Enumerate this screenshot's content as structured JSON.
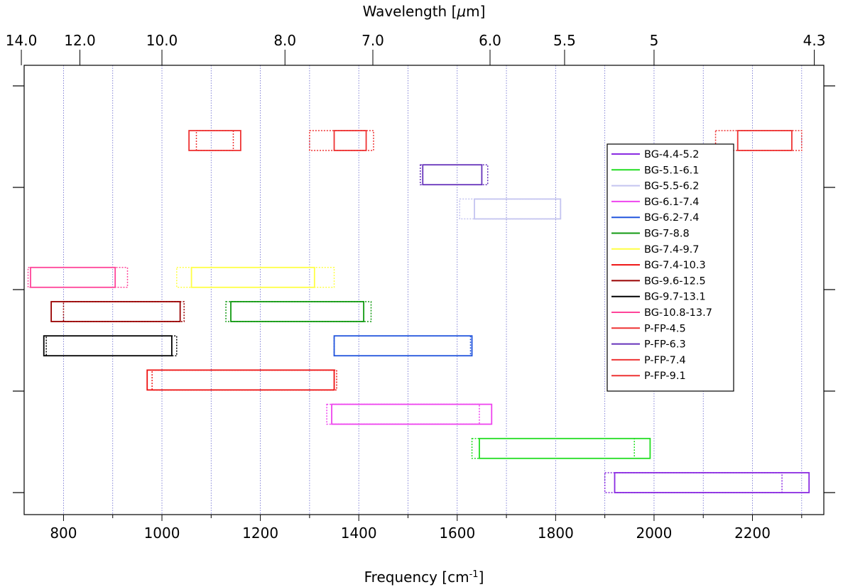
{
  "chart_data": {
    "type": "range-bar",
    "x_axis": {
      "label_main": "Frequency [cm",
      "label_sup": "-1",
      "label_end": "]",
      "range": [
        720,
        2345
      ],
      "ticks": [
        800,
        1000,
        1200,
        1400,
        1600,
        1800,
        2000,
        2200
      ],
      "tick_labels": [
        "800",
        "1000",
        "1200",
        "1400",
        "1600",
        "1800",
        "2000",
        "2200"
      ],
      "minor_gridlines": [
        800,
        900,
        1000,
        1100,
        1200,
        1300,
        1400,
        1500,
        1600,
        1700,
        1800,
        1900,
        2000,
        2100,
        2200,
        2300
      ]
    },
    "top_axis": {
      "label_main": "Wavelength [",
      "label_mu": "μ",
      "label_end": "m]",
      "ticks": [
        {
          "label": "14.0",
          "freq": 714.3
        },
        {
          "label": "12.0",
          "freq": 833.3
        },
        {
          "label": "10.0",
          "freq": 1000
        },
        {
          "label": "8.0",
          "freq": 1250
        },
        {
          "label": "7.0",
          "freq": 1428.6
        },
        {
          "label": "6.0",
          "freq": 1666.7
        },
        {
          "label": "5.5",
          "freq": 1818.2
        },
        {
          "label": "5",
          "freq": 2000
        },
        {
          "label": "4.3",
          "freq": 2325.6
        }
      ]
    },
    "grid": true,
    "legend_position": "right",
    "series": [
      {
        "name": "BG-4.4-5.2",
        "color": "#8a2be2",
        "row": 0,
        "solid": [
          1920,
          2315
        ],
        "dotted": [
          1900,
          2260
        ]
      },
      {
        "name": "BG-5.1-6.1",
        "color": "#22dd22",
        "row": 1,
        "solid": [
          1645,
          1992
        ],
        "dotted": [
          1630,
          1960
        ]
      },
      {
        "name": "BG-5.5-6.2",
        "color": "#c4c4f0",
        "row": 8,
        "solid": [
          1635,
          1810
        ],
        "dotted": [
          1605,
          1810
        ]
      },
      {
        "name": "BG-6.1-7.4",
        "color": "#ee44ee",
        "row": 2,
        "solid": [
          1345,
          1670
        ],
        "dotted": [
          1335,
          1645
        ]
      },
      {
        "name": "BG-6.2-7.4",
        "color": "#2255dd",
        "row": 4,
        "solid": [
          1350,
          1630
        ],
        "dotted": [
          1350,
          1627
        ]
      },
      {
        "name": "BG-7-8.8",
        "color": "#119911",
        "row": 5,
        "solid": [
          1140,
          1410
        ],
        "dotted": [
          1130,
          1425
        ]
      },
      {
        "name": "BG-7.4-9.7",
        "color": "#ffff44",
        "row": 6,
        "solid": [
          1060,
          1310
        ],
        "dotted": [
          1030,
          1350
        ]
      },
      {
        "name": "BG-7.4-10.3",
        "color": "#ee1111",
        "row": 3,
        "solid": [
          970,
          1350
        ],
        "dotted": [
          980,
          1355
        ]
      },
      {
        "name": "BG-9.6-12.5",
        "color": "#990000",
        "row": 5,
        "solid": [
          775,
          1037
        ],
        "dotted": [
          800,
          1045
        ]
      },
      {
        "name": "BG-9.7-13.1",
        "color": "#000000",
        "row": 4,
        "solid": [
          760,
          1020
        ],
        "dotted": [
          765,
          1030
        ]
      },
      {
        "name": "BG-10.8-13.7",
        "color": "#ff4499",
        "row": 6,
        "solid": [
          733,
          905
        ],
        "dotted": [
          728,
          930
        ]
      },
      {
        "name": "P-FP-4.5",
        "color": "#ee3333",
        "row": 10,
        "solid": [
          2170,
          2280
        ],
        "dotted": [
          2125,
          2300
        ]
      },
      {
        "name": "P-FP-6.3",
        "color": "#6633bb",
        "row": 9,
        "solid": [
          1530,
          1650
        ],
        "dotted": [
          1525,
          1662
        ]
      },
      {
        "name": "P-FP-7.4",
        "color": "#ee3333",
        "row": 10,
        "solid": [
          1350,
          1415
        ],
        "dotted": [
          1300,
          1430
        ]
      },
      {
        "name": "P-FP-9.1",
        "color": "#ee3333",
        "row": 10,
        "solid": [
          1055,
          1160
        ],
        "dotted": [
          1070,
          1145
        ]
      }
    ]
  }
}
